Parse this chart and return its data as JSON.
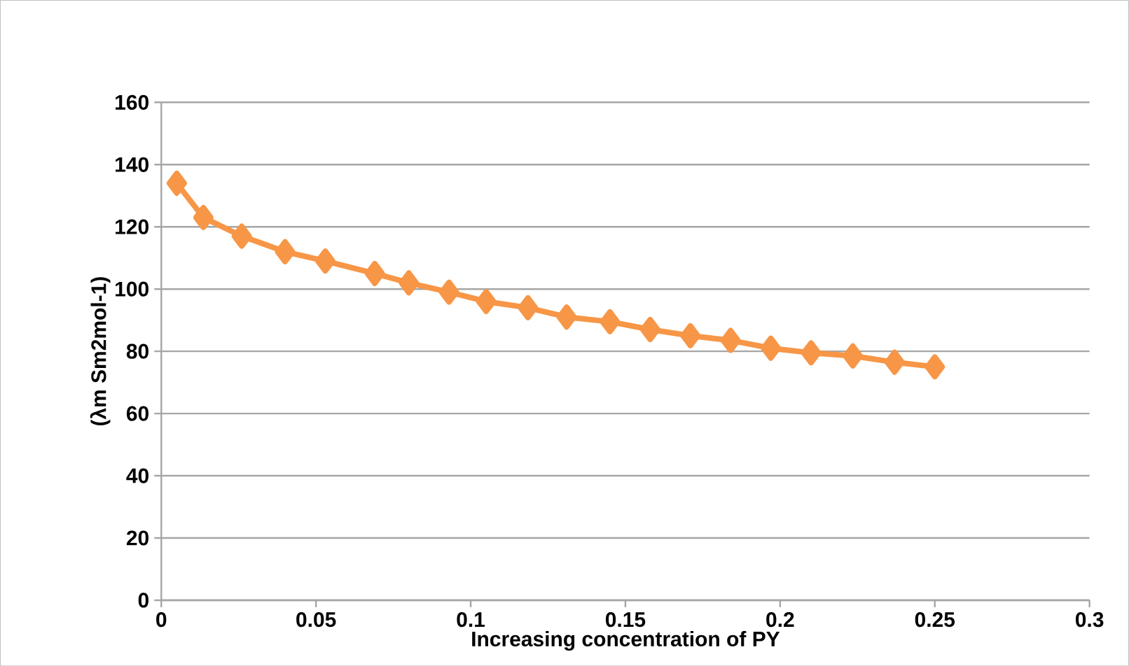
{
  "chart_data": {
    "type": "line",
    "xlabel": "Increasing concentration of  PY",
    "ylabel": "(λm Sm2mol-1)",
    "x": [
      0.005,
      0.0136,
      0.026,
      0.04,
      0.053,
      0.069,
      0.08,
      0.093,
      0.105,
      0.1185,
      0.131,
      0.145,
      0.158,
      0.171,
      0.184,
      0.197,
      0.21,
      0.2235,
      0.237,
      0.25
    ],
    "series": [
      {
        "color": "#f79646",
        "values": [
          134,
          123,
          117,
          112,
          109,
          105,
          102,
          99,
          96,
          94,
          91,
          89.5,
          87,
          85,
          83.5,
          81,
          79.5,
          78.5,
          76.5,
          75
        ]
      }
    ],
    "xlim": [
      0,
      0.3
    ],
    "ylim": [
      0,
      160
    ],
    "xticks": [
      0,
      0.05,
      0.1,
      0.15,
      0.2,
      0.25,
      0.3
    ],
    "yticks": [
      0,
      20,
      40,
      60,
      80,
      100,
      120,
      140,
      160
    ],
    "grid": "y",
    "marker": "diamond",
    "line_style": "solid"
  }
}
